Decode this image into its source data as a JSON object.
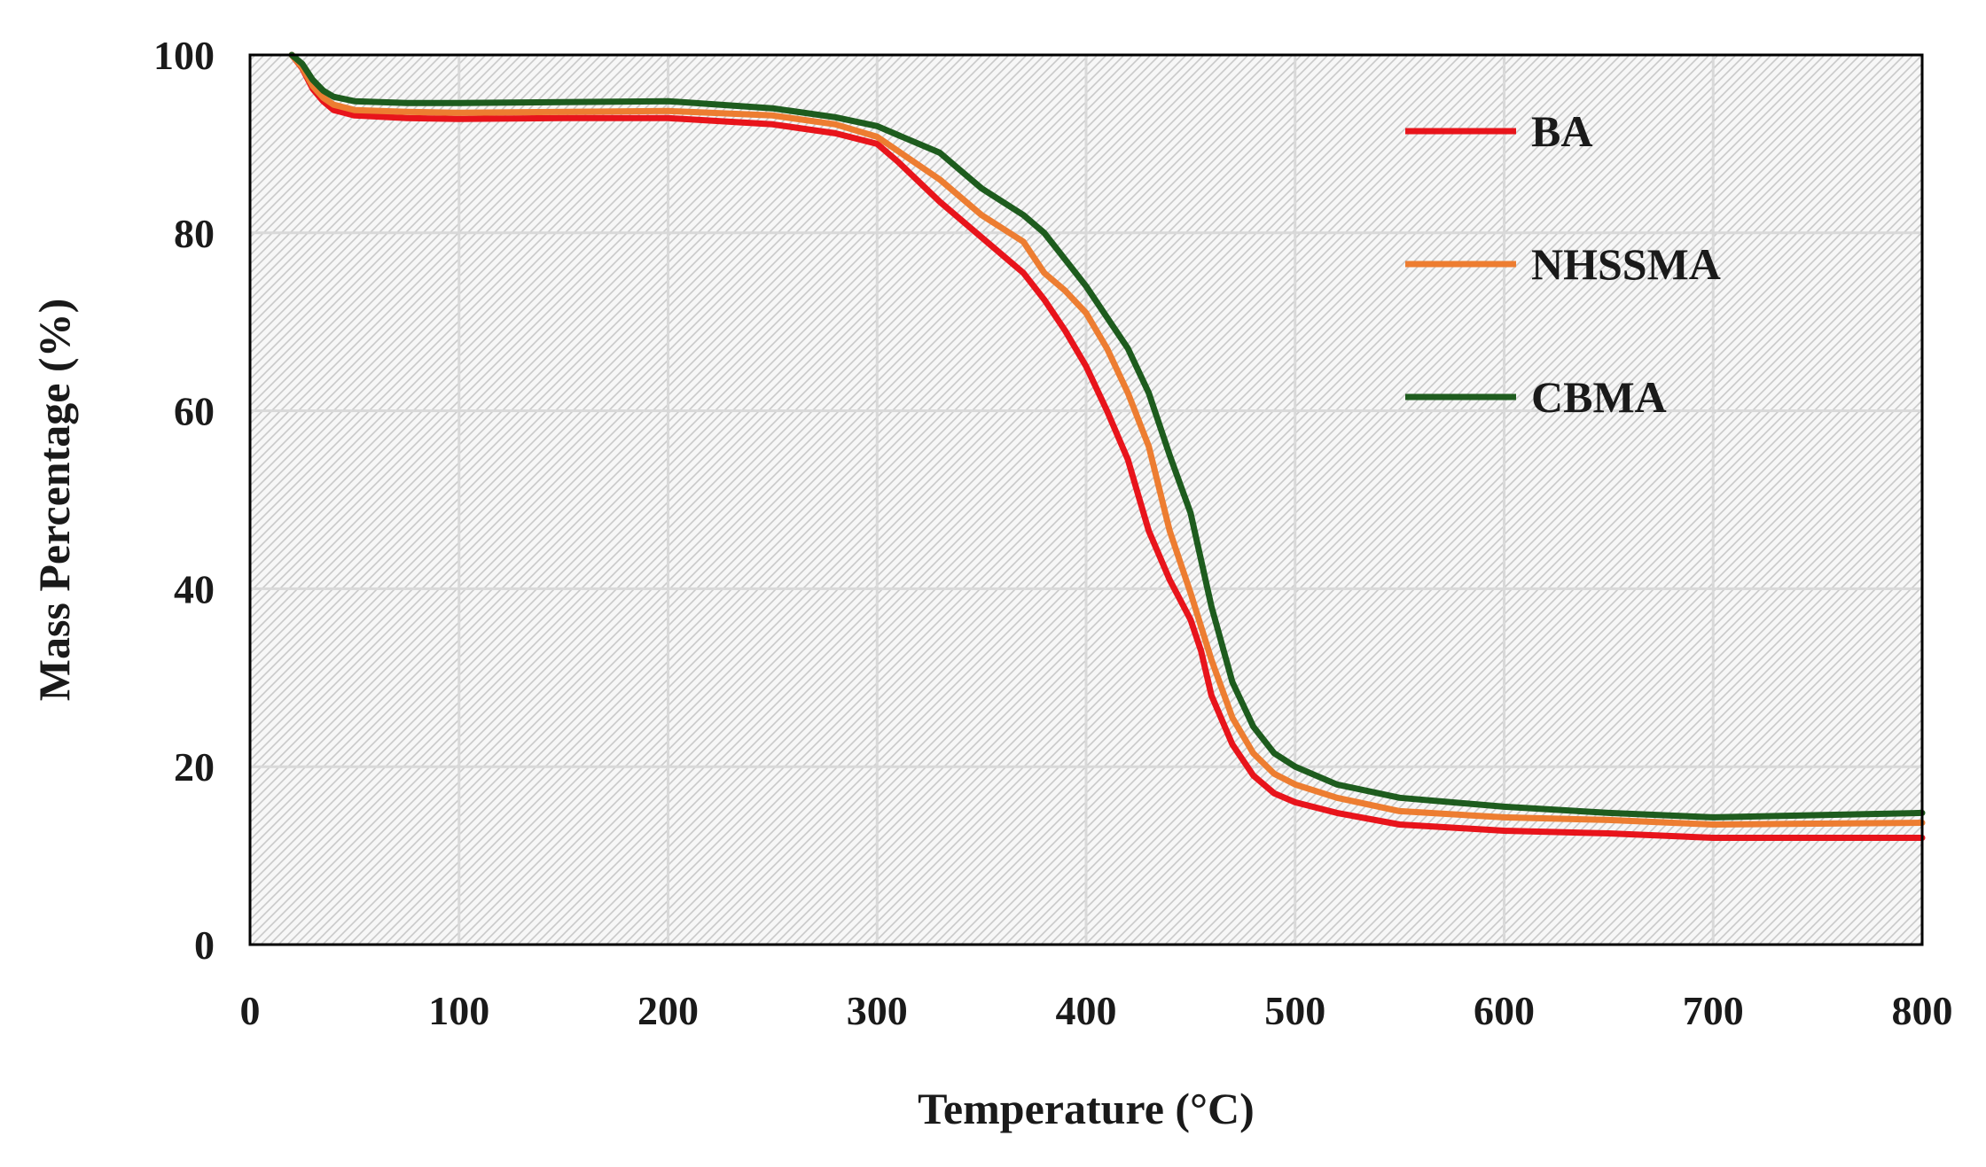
{
  "chart_data": {
    "type": "line",
    "title": "",
    "xlabel": "Temperature (°C)",
    "ylabel": "Mass Percentage (%)",
    "xlim": [
      0,
      800
    ],
    "ylim": [
      0,
      100
    ],
    "x_ticks": [
      "0",
      "100",
      "200",
      "300",
      "400",
      "500",
      "600",
      "700",
      "800"
    ],
    "y_ticks": [
      "0",
      "20",
      "40",
      "60",
      "80",
      "100"
    ],
    "grid": true,
    "legend_position": "top-right",
    "series": [
      {
        "name": "BA",
        "color": "#e8141b",
        "x": [
          20,
          25,
          30,
          35,
          40,
          50,
          75,
          100,
          150,
          200,
          250,
          280,
          300,
          310,
          330,
          350,
          370,
          380,
          390,
          400,
          410,
          420,
          425,
          430,
          440,
          450,
          455,
          460,
          470,
          480,
          490,
          500,
          520,
          550,
          600,
          650,
          700,
          800
        ],
        "values": [
          100,
          98.5,
          96.2,
          94.8,
          93.8,
          93.2,
          92.9,
          92.8,
          92.9,
          92.9,
          92.2,
          91.2,
          90,
          88,
          83.5,
          79.5,
          75.5,
          72.5,
          69,
          65,
          60,
          54.5,
          50.5,
          46.5,
          41,
          36.5,
          33,
          28,
          22.5,
          19,
          17,
          16,
          14.8,
          13.5,
          12.8,
          12.5,
          12,
          12
        ]
      },
      {
        "name": "NHSSMA",
        "color": "#ed7d31",
        "x": [
          20,
          25,
          30,
          35,
          40,
          50,
          75,
          100,
          150,
          200,
          250,
          280,
          300,
          310,
          330,
          350,
          370,
          380,
          390,
          400,
          410,
          420,
          430,
          440,
          450,
          460,
          470,
          480,
          490,
          500,
          520,
          550,
          600,
          650,
          700,
          800
        ],
        "values": [
          100,
          98.6,
          96.5,
          95.2,
          94.4,
          93.8,
          93.6,
          93.5,
          93.6,
          93.7,
          93.2,
          92.2,
          90.8,
          89.2,
          86,
          82,
          79,
          75.5,
          73.5,
          71,
          67,
          62,
          56,
          46.5,
          39.5,
          32,
          25.5,
          21.5,
          19.2,
          18,
          16.5,
          15,
          14.3,
          14,
          13.5,
          13.7
        ]
      },
      {
        "name": "CBMA",
        "color": "#1e5c1e",
        "x": [
          20,
          25,
          30,
          35,
          40,
          50,
          75,
          100,
          150,
          200,
          250,
          280,
          300,
          310,
          330,
          340,
          350,
          370,
          380,
          390,
          400,
          410,
          420,
          430,
          440,
          450,
          460,
          470,
          480,
          490,
          500,
          520,
          550,
          600,
          650,
          700,
          800
        ],
        "values": [
          100,
          99,
          97.2,
          96,
          95.3,
          94.8,
          94.6,
          94.6,
          94.7,
          94.8,
          94,
          93,
          92,
          91,
          89,
          87,
          85,
          82,
          80,
          77,
          74,
          70.5,
          67,
          62,
          55,
          48.5,
          38,
          29.5,
          24.5,
          21.5,
          20,
          18,
          16.5,
          15.5,
          14.8,
          14.3,
          14.8
        ]
      }
    ]
  }
}
